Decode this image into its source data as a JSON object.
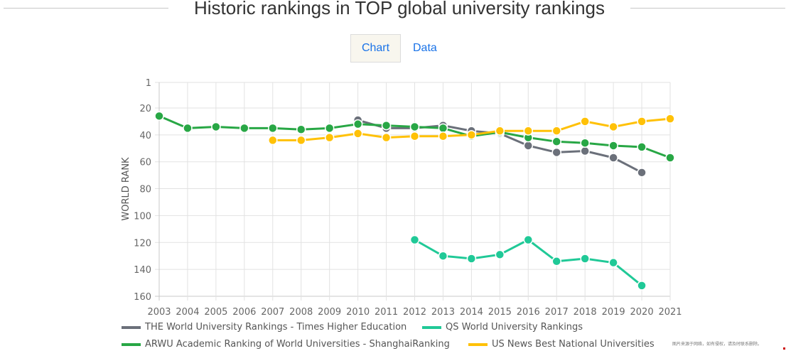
{
  "header": {
    "title": "Historic rankings in TOP global university rankings"
  },
  "tabs": [
    {
      "label": "Chart",
      "active": true
    },
    {
      "label": "Data",
      "active": false
    }
  ],
  "watermark": "图片来源于网络，如有侵权，请及时联系删除。",
  "chart_data": {
    "type": "line",
    "title": "Historic rankings in TOP global university rankings",
    "xlabel": "",
    "ylabel": "WORLD RANK",
    "y_inverted": true,
    "ylim": [
      1,
      160
    ],
    "yticks": [
      "1",
      "20",
      "40",
      "60",
      "80",
      "100",
      "120",
      "140",
      "160"
    ],
    "ytick_values": [
      1,
      20,
      40,
      60,
      80,
      100,
      120,
      140,
      160
    ],
    "x": [
      "2003",
      "2004",
      "2005",
      "2006",
      "2007",
      "2008",
      "2009",
      "2010",
      "2011",
      "2012",
      "2013",
      "2014",
      "2015",
      "2016",
      "2017",
      "2018",
      "2019",
      "2020",
      "2021"
    ],
    "grid": true,
    "legend_position": "bottom",
    "series": [
      {
        "name": "THE World University Rankings - Times Higher Education",
        "color": "#6b707a",
        "values": [
          null,
          null,
          null,
          null,
          null,
          null,
          null,
          29,
          35,
          35,
          33,
          37,
          39,
          48,
          53,
          52,
          57,
          68,
          null
        ]
      },
      {
        "name": "QS World University Rankings",
        "color": "#20c997",
        "values": [
          null,
          null,
          null,
          null,
          null,
          null,
          null,
          null,
          null,
          118,
          130,
          132,
          129,
          118,
          134,
          132,
          135,
          152,
          null
        ]
      },
      {
        "name": "ARWU Academic Ranking of World Universities - ShanghaiRanking",
        "color": "#28a745",
        "values": [
          26,
          35,
          34,
          35,
          35,
          36,
          35,
          32,
          33,
          34,
          35,
          41,
          38,
          42,
          45,
          46,
          48,
          49,
          57
        ]
      },
      {
        "name": "US News Best National Universities",
        "color": "#ffc107",
        "values": [
          null,
          null,
          null,
          null,
          44,
          44,
          42,
          39,
          42,
          41,
          41,
          40,
          37,
          37,
          37,
          30,
          34,
          30,
          28
        ]
      }
    ]
  }
}
